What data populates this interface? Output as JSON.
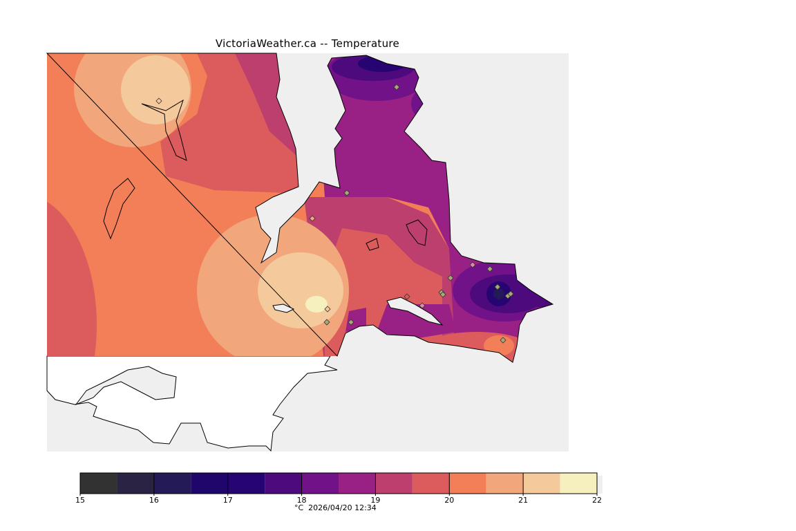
{
  "title": "VictoriaWeather.ca -- Temperature",
  "caption": "°C  2026/04/20 12:34",
  "colors": {
    "water": "#efefef",
    "outside_land": "#ffffff",
    "coastline": "#000000"
  },
  "chart_data": {
    "type": "heatmap",
    "title": "VictoriaWeather.ca -- Temperature",
    "variable": "Temperature",
    "units": "°C",
    "timestamp": "2026/04/20 12:34",
    "colorbar": {
      "range": [
        15,
        22
      ],
      "ticks": [
        "15",
        "16",
        "17",
        "18",
        "19",
        "20",
        "21",
        "22"
      ],
      "bin_width": 0.5,
      "bins": [
        {
          "from": 15.0,
          "to": 15.5,
          "color": "#323232"
        },
        {
          "from": 15.5,
          "to": 16.0,
          "color": "#2a2343"
        },
        {
          "from": 16.0,
          "to": 16.5,
          "color": "#241a58"
        },
        {
          "from": 16.5,
          "to": 17.0,
          "color": "#1f066a"
        },
        {
          "from": 17.0,
          "to": 17.5,
          "color": "#260472"
        },
        {
          "from": 17.5,
          "to": 18.0,
          "color": "#4c0a7c"
        },
        {
          "from": 18.0,
          "to": 18.5,
          "color": "#711289"
        },
        {
          "from": 18.5,
          "to": 19.0,
          "color": "#992085"
        },
        {
          "from": 19.0,
          "to": 19.5,
          "color": "#bd3f6e"
        },
        {
          "from": 19.5,
          "to": 20.0,
          "color": "#dc5b5d"
        },
        {
          "from": 20.0,
          "to": 20.5,
          "color": "#f27f57"
        },
        {
          "from": 20.5,
          "to": 21.0,
          "color": "#f1a67b"
        },
        {
          "from": 21.0,
          "to": 21.5,
          "color": "#f4c99c"
        },
        {
          "from": 21.5,
          "to": 22.0,
          "color": "#f6efbe"
        }
      ]
    }
  }
}
